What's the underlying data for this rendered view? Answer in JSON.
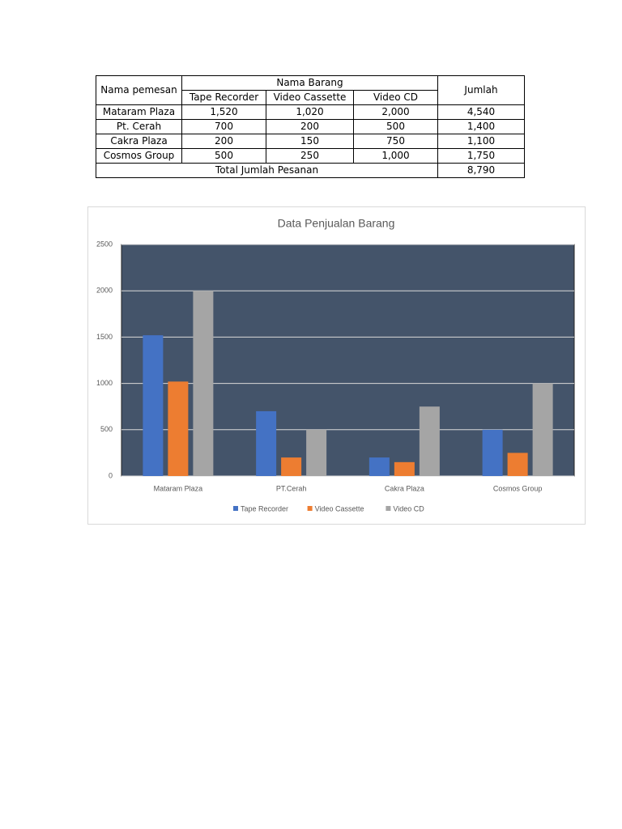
{
  "table": {
    "headers": [
      "Nama pemesan",
      "Nama Barang",
      "Jumlah"
    ],
    "subheaders": [
      "Tape Recorder",
      "Video Cassette",
      "Video CD"
    ],
    "rows": [
      [
        "Mataram Plaza",
        "1,520",
        "1,020",
        "2,000",
        "4,540"
      ],
      [
        "Pt. Cerah",
        "700",
        "200",
        "500",
        "1,400"
      ],
      [
        "Cakra Plaza",
        "200",
        "150",
        "750",
        "1,100"
      ],
      [
        "Cosmos Group",
        "500",
        "250",
        "1,000",
        "1,750"
      ]
    ],
    "total": [
      "Total Jumlah Pesanan",
      "8,790"
    ]
  },
  "chart_data": {
    "type": "bar",
    "title": "Data Penjualan Barang",
    "categories": [
      "Mataram Plaza",
      "PT.Cerah",
      "Cakra Plaza",
      "Cosmos Group"
    ],
    "series": [
      {
        "name": "Tape Recorder",
        "color": "#4472c4",
        "values": [
          1520,
          700,
          200,
          500
        ]
      },
      {
        "name": "Video Cassette",
        "color": "#ed7d31",
        "values": [
          1020,
          200,
          150,
          250
        ]
      },
      {
        "name": "Video CD",
        "color": "#a5a5a5",
        "values": [
          2000,
          500,
          750,
          1000
        ]
      }
    ],
    "ylim": [
      0,
      2500
    ],
    "yticks": [
      0,
      500,
      1000,
      1500,
      2000,
      2500
    ],
    "grid": true,
    "legend": "bottom"
  }
}
